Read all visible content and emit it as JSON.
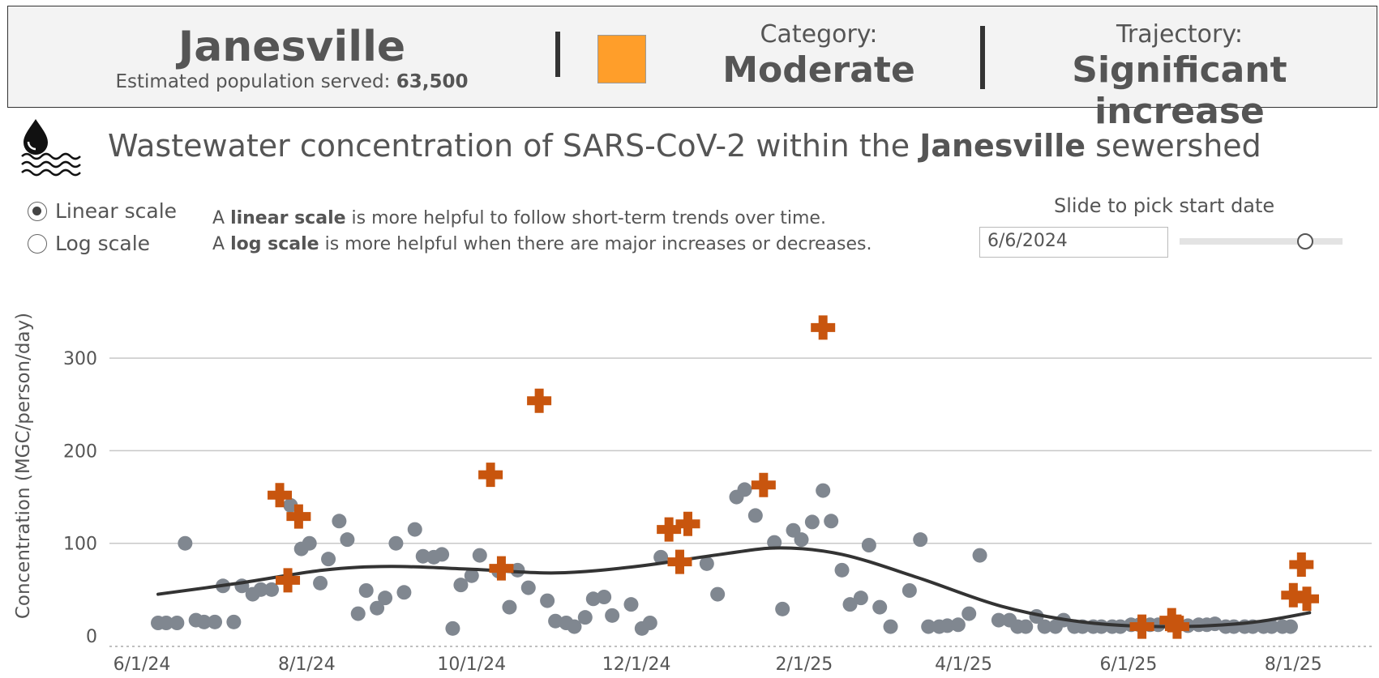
{
  "header": {
    "city": "Janesville",
    "population_label": "Estimated population served:",
    "population_value": "63,500",
    "category_label": "Category:",
    "category_value": "Moderate",
    "category_color": "#FF9E2A",
    "trajectory_label": "Trajectory:",
    "trajectory_value": "Significant increase"
  },
  "title": {
    "prefix": "Wastewater concentration of SARS-CoV-2 within the",
    "city": "Janesville",
    "suffix": "sewershed",
    "icon": "water-drop-waves-icon"
  },
  "scale_options": [
    {
      "label": "Linear scale",
      "selected": true
    },
    {
      "label": "Log scale",
      "selected": false
    }
  ],
  "notes": {
    "line1_a": "A",
    "line1_b": "linear scale",
    "line1_c": "is more helpful to follow short-term trends over time.",
    "line2_a": "A",
    "line2_b": "log scale",
    "line2_c": "is more helpful when there are major increases or decreases."
  },
  "slider": {
    "label": "Slide to pick start date",
    "value": "6/6/2024",
    "position_fraction": 0.77
  },
  "chart_data": {
    "type": "scatter",
    "ylabel": "Concentration (MGC/person/day)",
    "xlabel": "",
    "ylim": [
      0,
      350
    ],
    "yticks": [
      0,
      100,
      200,
      300
    ],
    "xticks": [
      "2024-06-01",
      "2024-08-01",
      "2024-10-01",
      "2024-12-01",
      "2025-02-01",
      "2025-04-01",
      "2025-06-01",
      "2025-08-01"
    ],
    "xtick_labels": [
      "6/1/24",
      "8/1/24",
      "10/1/24",
      "12/1/24",
      "2/1/25",
      "4/1/25",
      "6/1/25",
      "8/1/25"
    ],
    "xlim": [
      "2024-05-20",
      "2025-08-30"
    ],
    "grid": "horizontal",
    "colors": {
      "sample": "#808790",
      "flagged": "#C8550E",
      "trend": "#333333"
    },
    "samples": [
      {
        "x": "2024-06-07",
        "y": 14
      },
      {
        "x": "2024-06-10",
        "y": 14
      },
      {
        "x": "2024-06-14",
        "y": 14
      },
      {
        "x": "2024-06-17",
        "y": 100
      },
      {
        "x": "2024-06-21",
        "y": 17
      },
      {
        "x": "2024-06-24",
        "y": 15
      },
      {
        "x": "2024-06-28",
        "y": 15
      },
      {
        "x": "2024-07-01",
        "y": 54
      },
      {
        "x": "2024-07-05",
        "y": 15
      },
      {
        "x": "2024-07-08",
        "y": 54
      },
      {
        "x": "2024-07-12",
        "y": 45
      },
      {
        "x": "2024-07-15",
        "y": 50
      },
      {
        "x": "2024-07-19",
        "y": 50
      },
      {
        "x": "2024-07-26",
        "y": 141
      },
      {
        "x": "2024-07-30",
        "y": 94
      },
      {
        "x": "2024-08-02",
        "y": 100
      },
      {
        "x": "2024-08-06",
        "y": 57
      },
      {
        "x": "2024-08-09",
        "y": 83
      },
      {
        "x": "2024-08-13",
        "y": 124
      },
      {
        "x": "2024-08-16",
        "y": 104
      },
      {
        "x": "2024-08-20",
        "y": 24
      },
      {
        "x": "2024-08-23",
        "y": 49
      },
      {
        "x": "2024-08-27",
        "y": 30
      },
      {
        "x": "2024-08-30",
        "y": 41
      },
      {
        "x": "2024-09-03",
        "y": 100
      },
      {
        "x": "2024-09-06",
        "y": 47
      },
      {
        "x": "2024-09-10",
        "y": 115
      },
      {
        "x": "2024-09-13",
        "y": 86
      },
      {
        "x": "2024-09-17",
        "y": 85
      },
      {
        "x": "2024-09-20",
        "y": 88
      },
      {
        "x": "2024-09-24",
        "y": 8
      },
      {
        "x": "2024-09-27",
        "y": 55
      },
      {
        "x": "2024-10-01",
        "y": 65
      },
      {
        "x": "2024-10-04",
        "y": 87
      },
      {
        "x": "2024-10-11",
        "y": 70
      },
      {
        "x": "2024-10-15",
        "y": 31
      },
      {
        "x": "2024-10-18",
        "y": 71
      },
      {
        "x": "2024-10-22",
        "y": 52
      },
      {
        "x": "2024-10-29",
        "y": 38
      },
      {
        "x": "2024-11-01",
        "y": 16
      },
      {
        "x": "2024-11-05",
        "y": 14
      },
      {
        "x": "2024-11-08",
        "y": 10
      },
      {
        "x": "2024-11-12",
        "y": 20
      },
      {
        "x": "2024-11-15",
        "y": 40
      },
      {
        "x": "2024-11-19",
        "y": 42
      },
      {
        "x": "2024-11-22",
        "y": 22
      },
      {
        "x": "2024-11-29",
        "y": 34
      },
      {
        "x": "2024-12-03",
        "y": 8
      },
      {
        "x": "2024-12-06",
        "y": 14
      },
      {
        "x": "2024-12-10",
        "y": 85
      },
      {
        "x": "2024-12-27",
        "y": 78
      },
      {
        "x": "2024-12-31",
        "y": 45
      },
      {
        "x": "2025-01-07",
        "y": 150
      },
      {
        "x": "2025-01-10",
        "y": 158
      },
      {
        "x": "2025-01-14",
        "y": 130
      },
      {
        "x": "2025-01-21",
        "y": 101
      },
      {
        "x": "2025-01-24",
        "y": 29
      },
      {
        "x": "2025-01-28",
        "y": 114
      },
      {
        "x": "2025-01-31",
        "y": 104
      },
      {
        "x": "2025-02-04",
        "y": 123
      },
      {
        "x": "2025-02-08",
        "y": 157
      },
      {
        "x": "2025-02-11",
        "y": 124
      },
      {
        "x": "2025-02-15",
        "y": 71
      },
      {
        "x": "2025-02-18",
        "y": 34
      },
      {
        "x": "2025-02-22",
        "y": 41
      },
      {
        "x": "2025-02-25",
        "y": 98
      },
      {
        "x": "2025-03-01",
        "y": 31
      },
      {
        "x": "2025-03-05",
        "y": 10
      },
      {
        "x": "2025-03-12",
        "y": 49
      },
      {
        "x": "2025-03-16",
        "y": 104
      },
      {
        "x": "2025-03-19",
        "y": 10
      },
      {
        "x": "2025-03-23",
        "y": 10
      },
      {
        "x": "2025-03-26",
        "y": 11
      },
      {
        "x": "2025-03-30",
        "y": 12
      },
      {
        "x": "2025-04-03",
        "y": 24
      },
      {
        "x": "2025-04-07",
        "y": 87
      },
      {
        "x": "2025-04-14",
        "y": 17
      },
      {
        "x": "2025-04-18",
        "y": 17
      },
      {
        "x": "2025-04-21",
        "y": 10
      },
      {
        "x": "2025-04-24",
        "y": 10
      },
      {
        "x": "2025-04-28",
        "y": 21
      },
      {
        "x": "2025-05-01",
        "y": 10
      },
      {
        "x": "2025-05-05",
        "y": 10
      },
      {
        "x": "2025-05-08",
        "y": 17
      },
      {
        "x": "2025-05-12",
        "y": 10
      },
      {
        "x": "2025-05-15",
        "y": 10
      },
      {
        "x": "2025-05-19",
        "y": 10
      },
      {
        "x": "2025-05-22",
        "y": 10
      },
      {
        "x": "2025-05-26",
        "y": 10
      },
      {
        "x": "2025-05-29",
        "y": 10
      },
      {
        "x": "2025-06-02",
        "y": 12
      },
      {
        "x": "2025-06-05",
        "y": 12
      },
      {
        "x": "2025-06-09",
        "y": 12
      },
      {
        "x": "2025-06-12",
        "y": 12
      },
      {
        "x": "2025-06-23",
        "y": 11
      },
      {
        "x": "2025-06-27",
        "y": 12
      },
      {
        "x": "2025-06-30",
        "y": 12
      },
      {
        "x": "2025-07-03",
        "y": 13
      },
      {
        "x": "2025-07-07",
        "y": 10
      },
      {
        "x": "2025-07-10",
        "y": 10
      },
      {
        "x": "2025-07-14",
        "y": 10
      },
      {
        "x": "2025-07-17",
        "y": 10
      },
      {
        "x": "2025-07-21",
        "y": 10
      },
      {
        "x": "2025-07-24",
        "y": 10
      },
      {
        "x": "2025-07-28",
        "y": 10
      },
      {
        "x": "2025-07-31",
        "y": 10
      }
    ],
    "flagged": [
      {
        "x": "2024-07-22",
        "y": 152
      },
      {
        "x": "2024-07-25",
        "y": 60
      },
      {
        "x": "2024-07-29",
        "y": 129
      },
      {
        "x": "2024-10-08",
        "y": 174
      },
      {
        "x": "2024-10-12",
        "y": 73
      },
      {
        "x": "2024-10-26",
        "y": 254
      },
      {
        "x": "2024-12-13",
        "y": 115
      },
      {
        "x": "2024-12-17",
        "y": 80
      },
      {
        "x": "2024-12-20",
        "y": 121
      },
      {
        "x": "2025-01-17",
        "y": 163
      },
      {
        "x": "2025-02-08",
        "y": 333
      },
      {
        "x": "2025-06-06",
        "y": 10
      },
      {
        "x": "2025-06-17",
        "y": 17
      },
      {
        "x": "2025-06-19",
        "y": 10
      },
      {
        "x": "2025-08-01",
        "y": 44
      },
      {
        "x": "2025-08-04",
        "y": 77
      },
      {
        "x": "2025-08-06",
        "y": 40
      }
    ],
    "trend": [
      {
        "x": "2024-06-07",
        "y": 45
      },
      {
        "x": "2024-07-07",
        "y": 57
      },
      {
        "x": "2024-08-07",
        "y": 71
      },
      {
        "x": "2024-09-01",
        "y": 75
      },
      {
        "x": "2024-10-01",
        "y": 72
      },
      {
        "x": "2024-11-01",
        "y": 68
      },
      {
        "x": "2024-12-01",
        "y": 75
      },
      {
        "x": "2025-01-01",
        "y": 88
      },
      {
        "x": "2025-01-23",
        "y": 95
      },
      {
        "x": "2025-02-15",
        "y": 88
      },
      {
        "x": "2025-03-15",
        "y": 63
      },
      {
        "x": "2025-04-15",
        "y": 32
      },
      {
        "x": "2025-05-15",
        "y": 15
      },
      {
        "x": "2025-06-15",
        "y": 10
      },
      {
        "x": "2025-07-15",
        "y": 14
      },
      {
        "x": "2025-08-07",
        "y": 25
      }
    ]
  }
}
